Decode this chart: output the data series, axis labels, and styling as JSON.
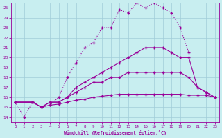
{
  "xlabel": "Windchill (Refroidissement éolien,°C)",
  "background_color": "#c8eef0",
  "grid_color": "#a0ccd8",
  "line_color": "#990099",
  "xmin": 0,
  "xmax": 23,
  "ymin": 14,
  "ymax": 25,
  "x_ticks": [
    0,
    1,
    2,
    3,
    4,
    5,
    6,
    7,
    8,
    9,
    10,
    11,
    12,
    13,
    14,
    15,
    16,
    17,
    18,
    19,
    20,
    21,
    22,
    23
  ],
  "y_ticks": [
    14,
    15,
    16,
    17,
    18,
    19,
    20,
    21,
    22,
    23,
    24,
    25
  ],
  "curve1_x": [
    0,
    1,
    2,
    3,
    4,
    5,
    6,
    7,
    8,
    9,
    10,
    11,
    12,
    13,
    14,
    15,
    16,
    17,
    18,
    19,
    20
  ],
  "curve1_y": [
    15.5,
    14.0,
    15.5,
    15.0,
    15.2,
    16.0,
    18.0,
    19.5,
    21.0,
    21.5,
    23.0,
    23.0,
    24.8,
    24.5,
    25.5,
    25.0,
    25.5,
    25.0,
    24.5,
    23.0,
    20.5
  ],
  "curve1_style": "dotted",
  "curve2_x": [
    0,
    2,
    3,
    4,
    5,
    6,
    7,
    8,
    9,
    10,
    11,
    12,
    13,
    14,
    15,
    16,
    17,
    18,
    19,
    20,
    21,
    22,
    23
  ],
  "curve2_y": [
    15.5,
    15.5,
    15.0,
    15.5,
    15.5,
    16.0,
    17.0,
    17.5,
    18.0,
    18.5,
    19.0,
    19.5,
    20.0,
    20.5,
    21.0,
    21.0,
    21.0,
    20.5,
    20.0,
    20.0,
    17.0,
    16.5,
    16.0
  ],
  "curve2_style": "solid",
  "curve3_x": [
    0,
    2,
    3,
    4,
    5,
    6,
    7,
    8,
    9,
    10,
    11,
    12,
    13,
    14,
    15,
    16,
    17,
    18,
    19,
    20,
    21,
    22,
    23
  ],
  "curve3_y": [
    15.5,
    15.5,
    15.0,
    15.5,
    15.5,
    16.0,
    16.5,
    17.0,
    17.5,
    17.5,
    18.0,
    18.0,
    18.5,
    18.5,
    18.5,
    18.5,
    18.5,
    18.5,
    18.5,
    18.0,
    17.0,
    16.5,
    16.0
  ],
  "curve3_style": "solid",
  "curve4_x": [
    0,
    2,
    3,
    4,
    5,
    6,
    7,
    8,
    9,
    10,
    11,
    12,
    13,
    14,
    15,
    16,
    17,
    18,
    19,
    20,
    21,
    22,
    23
  ],
  "curve4_y": [
    15.5,
    15.5,
    15.0,
    15.2,
    15.3,
    15.5,
    15.7,
    15.8,
    16.0,
    16.1,
    16.2,
    16.3,
    16.3,
    16.3,
    16.3,
    16.3,
    16.3,
    16.3,
    16.3,
    16.2,
    16.2,
    16.2,
    16.0
  ],
  "curve4_style": "solid"
}
